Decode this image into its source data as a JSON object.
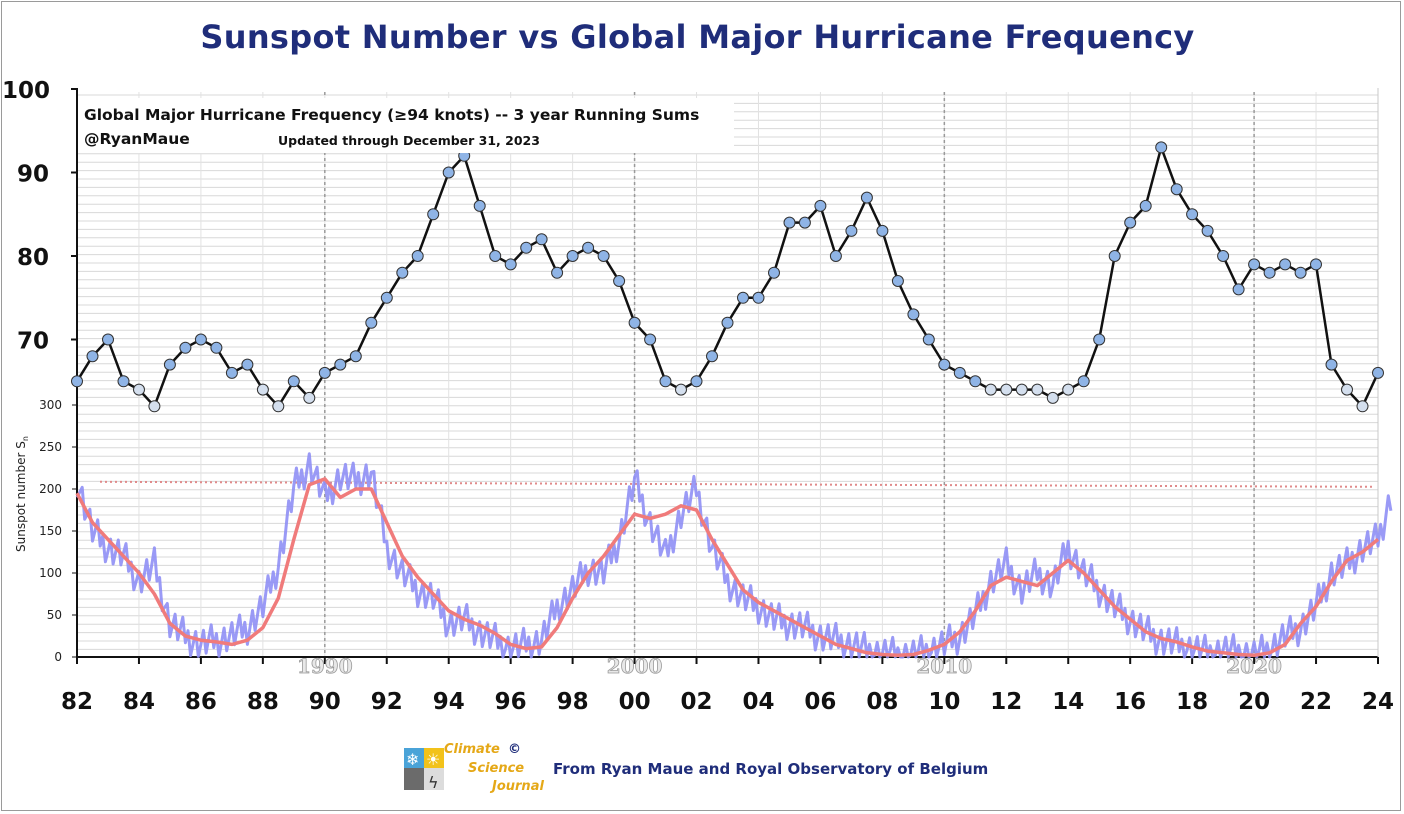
{
  "title": "Sunspot Number vs Global Major Hurricane Frequency",
  "inset": {
    "line1": "Global Major Hurricane Frequency (≥94 knots)  -- 3 year Running Sums",
    "line2": "@RyanMaue",
    "line3": "Updated through December 31, 2023"
  },
  "attribution": "From Ryan Maue and Royal Observatory of Belgium",
  "logo": {
    "word1": "Climate",
    "word2": "Science",
    "word3": "Journal",
    "symbol": "©"
  },
  "colors": {
    "title": "#1f2d7a",
    "hurricane_line": "#111111",
    "hurricane_marker": "#8fb4e6",
    "hurricane_marker_light": "#d4dfee",
    "sunspot_monthly": "#8f8ff5",
    "sunspot_smoothed": "#f07b7b",
    "dotted_reference": "#e08a8a"
  },
  "chart_data": {
    "type": "line",
    "x_tick_labels": [
      "82",
      "84",
      "86",
      "88",
      "90",
      "92",
      "94",
      "96",
      "98",
      "00",
      "02",
      "04",
      "06",
      "08",
      "10",
      "12",
      "14",
      "16",
      "18",
      "20",
      "22",
      "24"
    ],
    "decade_labels": [
      "1990",
      "2000",
      "2010",
      "2020"
    ],
    "hurricane": {
      "name": "Global Major Hurricane Frequency (≥94 knots) -- 3 year Running Sums",
      "ylim": [
        64,
        100
      ],
      "yticks": [
        "100",
        "90",
        "80",
        "70"
      ],
      "x": [
        1982.0,
        1982.5,
        1983.0,
        1983.5,
        1984.0,
        1984.5,
        1985.0,
        1985.5,
        1986.0,
        1986.5,
        1987.0,
        1987.5,
        1988.0,
        1988.5,
        1989.0,
        1989.5,
        1990.0,
        1990.5,
        1991.0,
        1991.5,
        1992.0,
        1992.5,
        1993.0,
        1993.5,
        1994.0,
        1994.5,
        1995.0,
        1995.5,
        1996.0,
        1996.5,
        1997.0,
        1997.5,
        1998.0,
        1998.5,
        1999.0,
        1999.5,
        2000.0,
        2000.5,
        2001.0,
        2001.5,
        2002.0,
        2002.5,
        2003.0,
        2003.5,
        2004.0,
        2004.5,
        2005.0,
        2005.5,
        2006.0,
        2006.5,
        2007.0,
        2007.5,
        2008.0,
        2008.5,
        2009.0,
        2009.5,
        2010.0,
        2010.5,
        2011.0,
        2011.5,
        2012.0,
        2012.5,
        2013.0,
        2013.5,
        2014.0,
        2014.5,
        2015.0,
        2015.5,
        2016.0,
        2016.5,
        2017.0,
        2017.5,
        2018.0,
        2018.5,
        2019.0,
        2019.5,
        2020.0,
        2020.5,
        2021.0,
        2021.5,
        2022.0,
        2022.5,
        2023.0,
        2023.5,
        2024.0
      ],
      "values": [
        65,
        68,
        70,
        65,
        64,
        62,
        67,
        69,
        70,
        69,
        66,
        67,
        64,
        62,
        65,
        63,
        66,
        67,
        68,
        72,
        75,
        78,
        80,
        85,
        90,
        92,
        86,
        80,
        79,
        81,
        82,
        78,
        80,
        81,
        80,
        77,
        72,
        70,
        65,
        64,
        65,
        68,
        72,
        75,
        75,
        78,
        84,
        84,
        86,
        80,
        83,
        87,
        83,
        77,
        73,
        70,
        67,
        66,
        65,
        64,
        64,
        64,
        64,
        63,
        64,
        65,
        70,
        80,
        84,
        86,
        93,
        88,
        85,
        83,
        80,
        76,
        79,
        78,
        79,
        78,
        79,
        67,
        64,
        62,
        66
      ]
    },
    "sunspot": {
      "ylabel": "Sunspot number S",
      "ylabel_subscript": "n",
      "ylim": [
        0,
        300
      ],
      "yticks": [
        "300",
        "250",
        "200",
        "150",
        "100",
        "50",
        "0"
      ],
      "reference_level": 205,
      "monthly": {
        "x": [
          1982.0,
          1982.5,
          1983.0,
          1983.5,
          1984.0,
          1984.5,
          1985.0,
          1985.5,
          1986.0,
          1986.5,
          1987.0,
          1987.5,
          1988.0,
          1988.5,
          1989.0,
          1989.5,
          1990.0,
          1990.5,
          1991.0,
          1991.5,
          1992.0,
          1992.5,
          1993.0,
          1993.5,
          1994.0,
          1994.5,
          1995.0,
          1995.5,
          1996.0,
          1996.5,
          1997.0,
          1997.5,
          1998.0,
          1998.5,
          1999.0,
          1999.5,
          2000.0,
          2000.5,
          2001.0,
          2001.5,
          2002.0,
          2002.5,
          2003.0,
          2003.5,
          2004.0,
          2004.5,
          2005.0,
          2005.5,
          2006.0,
          2006.5,
          2007.0,
          2007.5,
          2008.0,
          2008.5,
          2009.0,
          2009.5,
          2010.0,
          2010.5,
          2011.0,
          2011.5,
          2012.0,
          2012.5,
          2013.0,
          2013.5,
          2014.0,
          2014.5,
          2015.0,
          2015.5,
          2016.0,
          2016.5,
          2017.0,
          2017.5,
          2018.0,
          2018.5,
          2019.0,
          2019.5,
          2020.0,
          2020.5,
          2021.0,
          2021.5,
          2022.0,
          2022.5,
          2023.0,
          2023.5,
          2024.0,
          2024.5
        ],
        "values": [
          210,
          150,
          130,
          120,
          90,
          110,
          40,
          25,
          15,
          20,
          25,
          35,
          60,
          110,
          200,
          230,
          190,
          215,
          210,
          220,
          130,
          100,
          80,
          70,
          40,
          45,
          30,
          20,
          10,
          15,
          20,
          60,
          80,
          105,
          100,
          140,
          210,
          160,
          120,
          170,
          200,
          130,
          90,
          70,
          60,
          45,
          40,
          35,
          25,
          20,
          15,
          8,
          4,
          3,
          3,
          8,
          15,
          25,
          50,
          90,
          110,
          80,
          100,
          85,
          130,
          100,
          80,
          60,
          45,
          30,
          20,
          15,
          10,
          5,
          8,
          6,
          2,
          10,
          25,
          35,
          60,
          100,
          110,
          130,
          140,
          200
        ]
      },
      "smoothed": {
        "x": [
          1982.0,
          1982.5,
          1983.0,
          1983.5,
          1984.0,
          1984.5,
          1985.0,
          1985.5,
          1986.0,
          1986.5,
          1987.0,
          1987.5,
          1988.0,
          1988.5,
          1989.0,
          1989.5,
          1990.0,
          1990.5,
          1991.0,
          1991.5,
          1992.0,
          1992.5,
          1993.0,
          1993.5,
          1994.0,
          1994.5,
          1995.0,
          1995.5,
          1996.0,
          1996.5,
          1997.0,
          1997.5,
          1998.0,
          1998.5,
          1999.0,
          1999.5,
          2000.0,
          2000.5,
          2001.0,
          2001.5,
          2002.0,
          2002.5,
          2003.0,
          2003.5,
          2004.0,
          2004.5,
          2005.0,
          2005.5,
          2006.0,
          2006.5,
          2007.0,
          2007.5,
          2008.0,
          2008.5,
          2009.0,
          2009.5,
          2010.0,
          2010.5,
          2011.0,
          2011.5,
          2012.0,
          2012.5,
          2013.0,
          2013.5,
          2014.0,
          2014.5,
          2015.0,
          2015.5,
          2016.0,
          2016.5,
          2017.0,
          2017.5,
          2018.0,
          2018.5,
          2019.0,
          2019.5,
          2020.0,
          2020.5,
          2021.0,
          2021.5,
          2022.0,
          2022.5,
          2023.0,
          2023.5,
          2024.0
        ],
        "values": [
          195,
          160,
          140,
          120,
          100,
          75,
          40,
          25,
          20,
          18,
          15,
          20,
          35,
          70,
          140,
          205,
          212,
          190,
          200,
          200,
          160,
          120,
          95,
          75,
          55,
          45,
          38,
          28,
          15,
          10,
          12,
          35,
          70,
          100,
          120,
          145,
          170,
          165,
          170,
          180,
          175,
          140,
          110,
          80,
          65,
          55,
          45,
          35,
          25,
          15,
          10,
          5,
          3,
          2,
          3,
          8,
          15,
          30,
          55,
          85,
          95,
          90,
          85,
          100,
          115,
          100,
          80,
          60,
          45,
          30,
          22,
          18,
          12,
          7,
          5,
          3,
          2,
          5,
          15,
          40,
          60,
          90,
          115,
          125,
          140
        ]
      }
    }
  }
}
